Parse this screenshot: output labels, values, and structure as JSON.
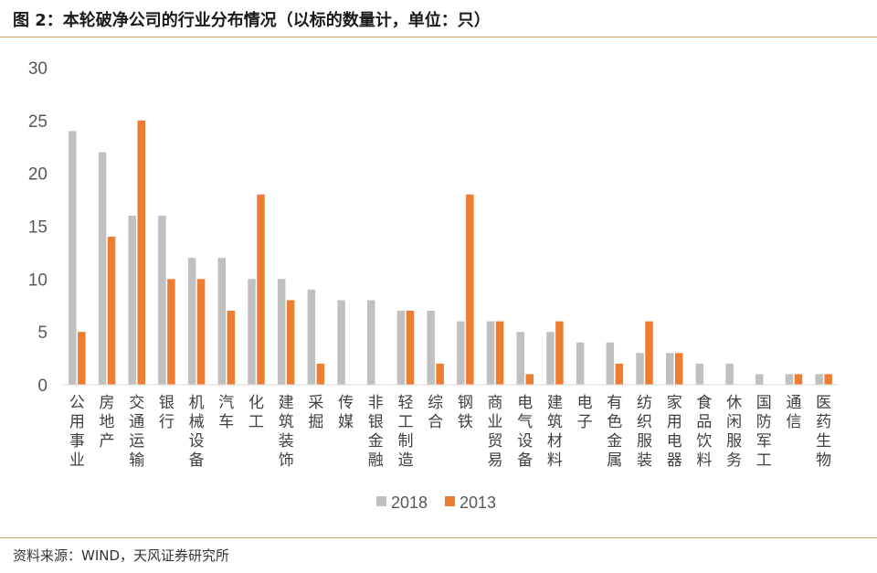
{
  "header": {
    "title": "图 2：本轮破净公司的行业分布情况（以标的数量计，单位：只）"
  },
  "footer": {
    "source": "资料来源：WIND，天风证券研究所"
  },
  "colors": {
    "series_2018": "#c0c0c0",
    "series_2013": "#ed7d31",
    "rule": "#c8a063"
  },
  "chart_data": {
    "type": "bar",
    "title": "",
    "xlabel": "",
    "ylabel": "",
    "ylim": [
      0,
      30
    ],
    "yticks": [
      0,
      5,
      10,
      15,
      20,
      25,
      30
    ],
    "grid": false,
    "legend_position": "bottom",
    "categories": [
      "公用事业",
      "房地产",
      "交通运输",
      "银行",
      "机械设备",
      "汽车",
      "化工",
      "建筑装饰",
      "采掘",
      "传媒",
      "非银金融",
      "轻工制造",
      "综合",
      "钢铁",
      "商业贸易",
      "电气设备",
      "建筑材料",
      "电子",
      "有色金属",
      "纺织服装",
      "家用电器",
      "食品饮料",
      "休闲服务",
      "国防军工",
      "通信",
      "医药生物"
    ],
    "series": [
      {
        "name": "2018",
        "values": [
          24,
          22,
          16,
          16,
          12,
          12,
          10,
          10,
          9,
          8,
          8,
          7,
          7,
          6,
          6,
          5,
          5,
          4,
          4,
          3,
          3,
          2,
          2,
          1,
          1,
          1
        ]
      },
      {
        "name": "2013",
        "values": [
          5,
          14,
          25,
          10,
          10,
          7,
          18,
          8,
          2,
          0,
          0,
          7,
          2,
          18,
          6,
          1,
          6,
          0,
          2,
          6,
          3,
          0,
          0,
          0,
          1,
          1
        ]
      }
    ]
  }
}
